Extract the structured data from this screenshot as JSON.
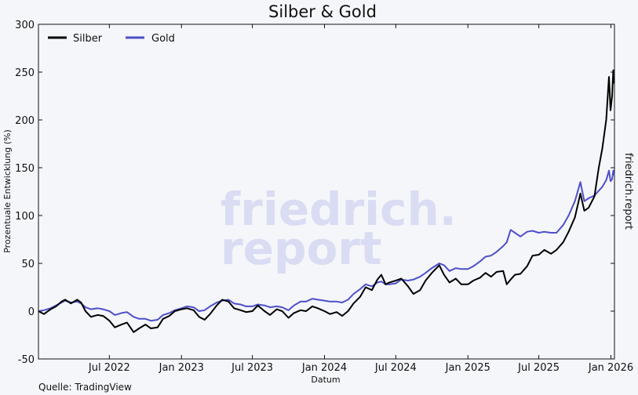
{
  "chart_data": {
    "type": "line",
    "title": "Silber & Gold",
    "xlabel": "Datum",
    "ylabel": "Prozentuale Entwicklung (%)",
    "ylim": [
      -50,
      300
    ],
    "yticks": [
      -50,
      0,
      50,
      100,
      150,
      200,
      250,
      300
    ],
    "xlim": [
      "2022-01-01",
      "2026-01-10"
    ],
    "xticks": [
      {
        "date": "2022-07-01",
        "label": "Jul 2022"
      },
      {
        "date": "2023-01-01",
        "label": "Jan 2023"
      },
      {
        "date": "2023-07-01",
        "label": "Jul 2023"
      },
      {
        "date": "2024-01-01",
        "label": "Jan 2024"
      },
      {
        "date": "2024-07-01",
        "label": "Jul 2024"
      },
      {
        "date": "2025-01-01",
        "label": "Jan 2025"
      },
      {
        "date": "2025-07-01",
        "label": "Jul 2025"
      },
      {
        "date": "2026-01-01",
        "label": "Jan 2026"
      }
    ],
    "grid": false,
    "legend_position": "top-left",
    "series": [
      {
        "name": "Silber",
        "color": "#000000",
        "points": [
          [
            "2022-01-01",
            0
          ],
          [
            "2022-01-15",
            -3
          ],
          [
            "2022-02-01",
            2
          ],
          [
            "2022-02-15",
            5
          ],
          [
            "2022-03-01",
            10
          ],
          [
            "2022-03-10",
            12
          ],
          [
            "2022-03-25",
            8
          ],
          [
            "2022-04-10",
            12
          ],
          [
            "2022-04-20",
            9
          ],
          [
            "2022-05-01",
            0
          ],
          [
            "2022-05-15",
            -6
          ],
          [
            "2022-06-01",
            -4
          ],
          [
            "2022-06-15",
            -5
          ],
          [
            "2022-07-01",
            -10
          ],
          [
            "2022-07-15",
            -17
          ],
          [
            "2022-08-01",
            -14
          ],
          [
            "2022-08-15",
            -12
          ],
          [
            "2022-09-01",
            -22
          ],
          [
            "2022-09-15",
            -18
          ],
          [
            "2022-10-01",
            -14
          ],
          [
            "2022-10-15",
            -18
          ],
          [
            "2022-11-01",
            -17
          ],
          [
            "2022-11-15",
            -8
          ],
          [
            "2022-12-01",
            -5
          ],
          [
            "2022-12-15",
            0
          ],
          [
            "2023-01-01",
            2
          ],
          [
            "2023-01-15",
            3
          ],
          [
            "2023-02-01",
            1
          ],
          [
            "2023-02-15",
            -6
          ],
          [
            "2023-03-01",
            -9
          ],
          [
            "2023-03-15",
            -3
          ],
          [
            "2023-04-01",
            6
          ],
          [
            "2023-04-15",
            12
          ],
          [
            "2023-05-01",
            10
          ],
          [
            "2023-05-15",
            3
          ],
          [
            "2023-06-01",
            1
          ],
          [
            "2023-06-15",
            -1
          ],
          [
            "2023-07-01",
            0
          ],
          [
            "2023-07-15",
            6
          ],
          [
            "2023-08-01",
            0
          ],
          [
            "2023-08-15",
            -4
          ],
          [
            "2023-09-01",
            2
          ],
          [
            "2023-09-15",
            0
          ],
          [
            "2023-10-01",
            -7
          ],
          [
            "2023-10-15",
            -2
          ],
          [
            "2023-11-01",
            1
          ],
          [
            "2023-11-15",
            0
          ],
          [
            "2023-12-01",
            5
          ],
          [
            "2023-12-15",
            3
          ],
          [
            "2024-01-01",
            0
          ],
          [
            "2024-01-15",
            -3
          ],
          [
            "2024-02-01",
            -1
          ],
          [
            "2024-02-15",
            -5
          ],
          [
            "2024-03-01",
            0
          ],
          [
            "2024-03-15",
            8
          ],
          [
            "2024-04-01",
            15
          ],
          [
            "2024-04-15",
            25
          ],
          [
            "2024-05-01",
            22
          ],
          [
            "2024-05-15",
            33
          ],
          [
            "2024-05-25",
            38
          ],
          [
            "2024-06-05",
            28
          ],
          [
            "2024-06-15",
            30
          ],
          [
            "2024-07-01",
            32
          ],
          [
            "2024-07-15",
            34
          ],
          [
            "2024-08-01",
            26
          ],
          [
            "2024-08-15",
            18
          ],
          [
            "2024-09-01",
            22
          ],
          [
            "2024-09-15",
            32
          ],
          [
            "2024-10-01",
            40
          ],
          [
            "2024-10-20",
            48
          ],
          [
            "2024-11-01",
            38
          ],
          [
            "2024-11-15",
            30
          ],
          [
            "2024-12-01",
            34
          ],
          [
            "2024-12-15",
            28
          ],
          [
            "2025-01-01",
            28
          ],
          [
            "2025-01-15",
            32
          ],
          [
            "2025-02-01",
            35
          ],
          [
            "2025-02-15",
            40
          ],
          [
            "2025-03-01",
            36
          ],
          [
            "2025-03-15",
            41
          ],
          [
            "2025-04-01",
            42
          ],
          [
            "2025-04-10",
            28
          ],
          [
            "2025-04-20",
            33
          ],
          [
            "2025-05-01",
            38
          ],
          [
            "2025-05-15",
            39
          ],
          [
            "2025-06-01",
            47
          ],
          [
            "2025-06-15",
            58
          ],
          [
            "2025-07-01",
            59
          ],
          [
            "2025-07-15",
            64
          ],
          [
            "2025-08-01",
            60
          ],
          [
            "2025-08-15",
            64
          ],
          [
            "2025-09-01",
            72
          ],
          [
            "2025-09-15",
            83
          ],
          [
            "2025-10-01",
            98
          ],
          [
            "2025-10-15",
            123
          ],
          [
            "2025-10-25",
            105
          ],
          [
            "2025-11-05",
            108
          ],
          [
            "2025-11-20",
            120
          ],
          [
            "2025-12-01",
            150
          ],
          [
            "2025-12-10",
            170
          ],
          [
            "2025-12-20",
            200
          ],
          [
            "2025-12-27",
            245
          ],
          [
            "2025-12-31",
            210
          ],
          [
            "2026-01-04",
            225
          ],
          [
            "2026-01-07",
            252
          ],
          [
            "2026-01-09",
            238
          ]
        ]
      },
      {
        "name": "Gold",
        "color": "#4d4fc9",
        "points": [
          [
            "2022-01-01",
            0
          ],
          [
            "2022-01-15",
            1
          ],
          [
            "2022-02-01",
            3
          ],
          [
            "2022-02-15",
            6
          ],
          [
            "2022-03-01",
            9
          ],
          [
            "2022-03-10",
            11
          ],
          [
            "2022-03-25",
            9
          ],
          [
            "2022-04-10",
            10
          ],
          [
            "2022-04-20",
            8
          ],
          [
            "2022-05-01",
            4
          ],
          [
            "2022-05-15",
            2
          ],
          [
            "2022-06-01",
            3
          ],
          [
            "2022-06-15",
            2
          ],
          [
            "2022-07-01",
            0
          ],
          [
            "2022-07-15",
            -4
          ],
          [
            "2022-08-01",
            -2
          ],
          [
            "2022-08-15",
            -1
          ],
          [
            "2022-09-01",
            -6
          ],
          [
            "2022-09-15",
            -8
          ],
          [
            "2022-10-01",
            -8
          ],
          [
            "2022-10-15",
            -10
          ],
          [
            "2022-11-01",
            -9
          ],
          [
            "2022-11-15",
            -4
          ],
          [
            "2022-12-01",
            -2
          ],
          [
            "2022-12-15",
            1
          ],
          [
            "2023-01-01",
            3
          ],
          [
            "2023-01-15",
            5
          ],
          [
            "2023-02-01",
            4
          ],
          [
            "2023-02-15",
            0
          ],
          [
            "2023-03-01",
            1
          ],
          [
            "2023-03-15",
            5
          ],
          [
            "2023-04-01",
            9
          ],
          [
            "2023-04-15",
            11
          ],
          [
            "2023-05-01",
            12
          ],
          [
            "2023-05-15",
            8
          ],
          [
            "2023-06-01",
            7
          ],
          [
            "2023-06-15",
            5
          ],
          [
            "2023-07-01",
            5
          ],
          [
            "2023-07-15",
            7
          ],
          [
            "2023-08-01",
            6
          ],
          [
            "2023-08-15",
            4
          ],
          [
            "2023-09-01",
            5
          ],
          [
            "2023-09-15",
            4
          ],
          [
            "2023-10-01",
            1
          ],
          [
            "2023-10-15",
            6
          ],
          [
            "2023-11-01",
            10
          ],
          [
            "2023-11-15",
            10
          ],
          [
            "2023-12-01",
            13
          ],
          [
            "2023-12-15",
            12
          ],
          [
            "2024-01-01",
            11
          ],
          [
            "2024-01-15",
            10
          ],
          [
            "2024-02-01",
            10
          ],
          [
            "2024-02-15",
            9
          ],
          [
            "2024-03-01",
            12
          ],
          [
            "2024-03-15",
            18
          ],
          [
            "2024-04-01",
            23
          ],
          [
            "2024-04-15",
            28
          ],
          [
            "2024-05-01",
            26
          ],
          [
            "2024-05-15",
            30
          ],
          [
            "2024-05-25",
            31
          ],
          [
            "2024-06-05",
            28
          ],
          [
            "2024-06-15",
            28
          ],
          [
            "2024-07-01",
            29
          ],
          [
            "2024-07-15",
            33
          ],
          [
            "2024-08-01",
            32
          ],
          [
            "2024-08-15",
            33
          ],
          [
            "2024-09-01",
            36
          ],
          [
            "2024-09-15",
            40
          ],
          [
            "2024-10-01",
            45
          ],
          [
            "2024-10-20",
            50
          ],
          [
            "2024-11-01",
            48
          ],
          [
            "2024-11-15",
            42
          ],
          [
            "2024-12-01",
            45
          ],
          [
            "2024-12-15",
            44
          ],
          [
            "2025-01-01",
            44
          ],
          [
            "2025-01-15",
            47
          ],
          [
            "2025-02-01",
            52
          ],
          [
            "2025-02-15",
            57
          ],
          [
            "2025-03-01",
            58
          ],
          [
            "2025-03-15",
            62
          ],
          [
            "2025-04-01",
            68
          ],
          [
            "2025-04-10",
            72
          ],
          [
            "2025-04-20",
            85
          ],
          [
            "2025-05-01",
            82
          ],
          [
            "2025-05-15",
            78
          ],
          [
            "2025-06-01",
            83
          ],
          [
            "2025-06-15",
            84
          ],
          [
            "2025-07-01",
            82
          ],
          [
            "2025-07-15",
            83
          ],
          [
            "2025-08-01",
            82
          ],
          [
            "2025-08-15",
            82
          ],
          [
            "2025-09-01",
            90
          ],
          [
            "2025-09-15",
            100
          ],
          [
            "2025-10-01",
            115
          ],
          [
            "2025-10-15",
            135
          ],
          [
            "2025-10-25",
            115
          ],
          [
            "2025-11-05",
            118
          ],
          [
            "2025-11-20",
            121
          ],
          [
            "2025-12-01",
            126
          ],
          [
            "2025-12-10",
            130
          ],
          [
            "2025-12-20",
            137
          ],
          [
            "2025-12-27",
            147
          ],
          [
            "2025-12-31",
            136
          ],
          [
            "2026-01-04",
            138
          ],
          [
            "2026-01-07",
            147
          ],
          [
            "2026-01-09",
            142
          ]
        ]
      }
    ]
  },
  "source_label": "Quelle: TradingView",
  "side_label": "friedrich.report",
  "watermark": {
    "line1": "friedrich.",
    "line2": "report"
  }
}
